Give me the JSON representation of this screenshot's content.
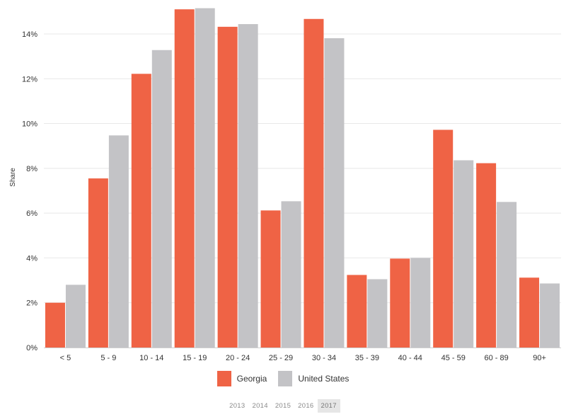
{
  "chart_data": {
    "type": "bar",
    "categories": [
      "< 5",
      "5 - 9",
      "10 - 14",
      "15 - 19",
      "20 - 24",
      "25 - 29",
      "30 - 34",
      "35 - 39",
      "40 - 44",
      "45 - 59",
      "60 - 89",
      "90+"
    ],
    "series": [
      {
        "name": "Georgia",
        "color": "#ef6345",
        "values": [
          2.0,
          7.55,
          12.22,
          15.1,
          14.32,
          6.12,
          14.67,
          3.24,
          3.97,
          9.72,
          8.23,
          3.12
        ]
      },
      {
        "name": "United States",
        "color": "#c3c3c6",
        "values": [
          2.8,
          9.47,
          13.28,
          15.15,
          14.44,
          6.53,
          13.81,
          3.05,
          4.0,
          8.36,
          6.5,
          2.86
        ]
      }
    ],
    "ylabel": "Share",
    "ylim": [
      0,
      15.2
    ],
    "yticks": [
      0,
      2,
      4,
      6,
      8,
      10,
      12,
      14
    ],
    "ytick_suffix": "%",
    "grid": true,
    "legend": "bottom"
  },
  "legend": [
    {
      "label": "Georgia",
      "color": "#ef6345"
    },
    {
      "label": "United States",
      "color": "#c3c3c6"
    }
  ],
  "years": [
    "2013",
    "2014",
    "2015",
    "2016",
    "2017"
  ],
  "active_year": "2017"
}
